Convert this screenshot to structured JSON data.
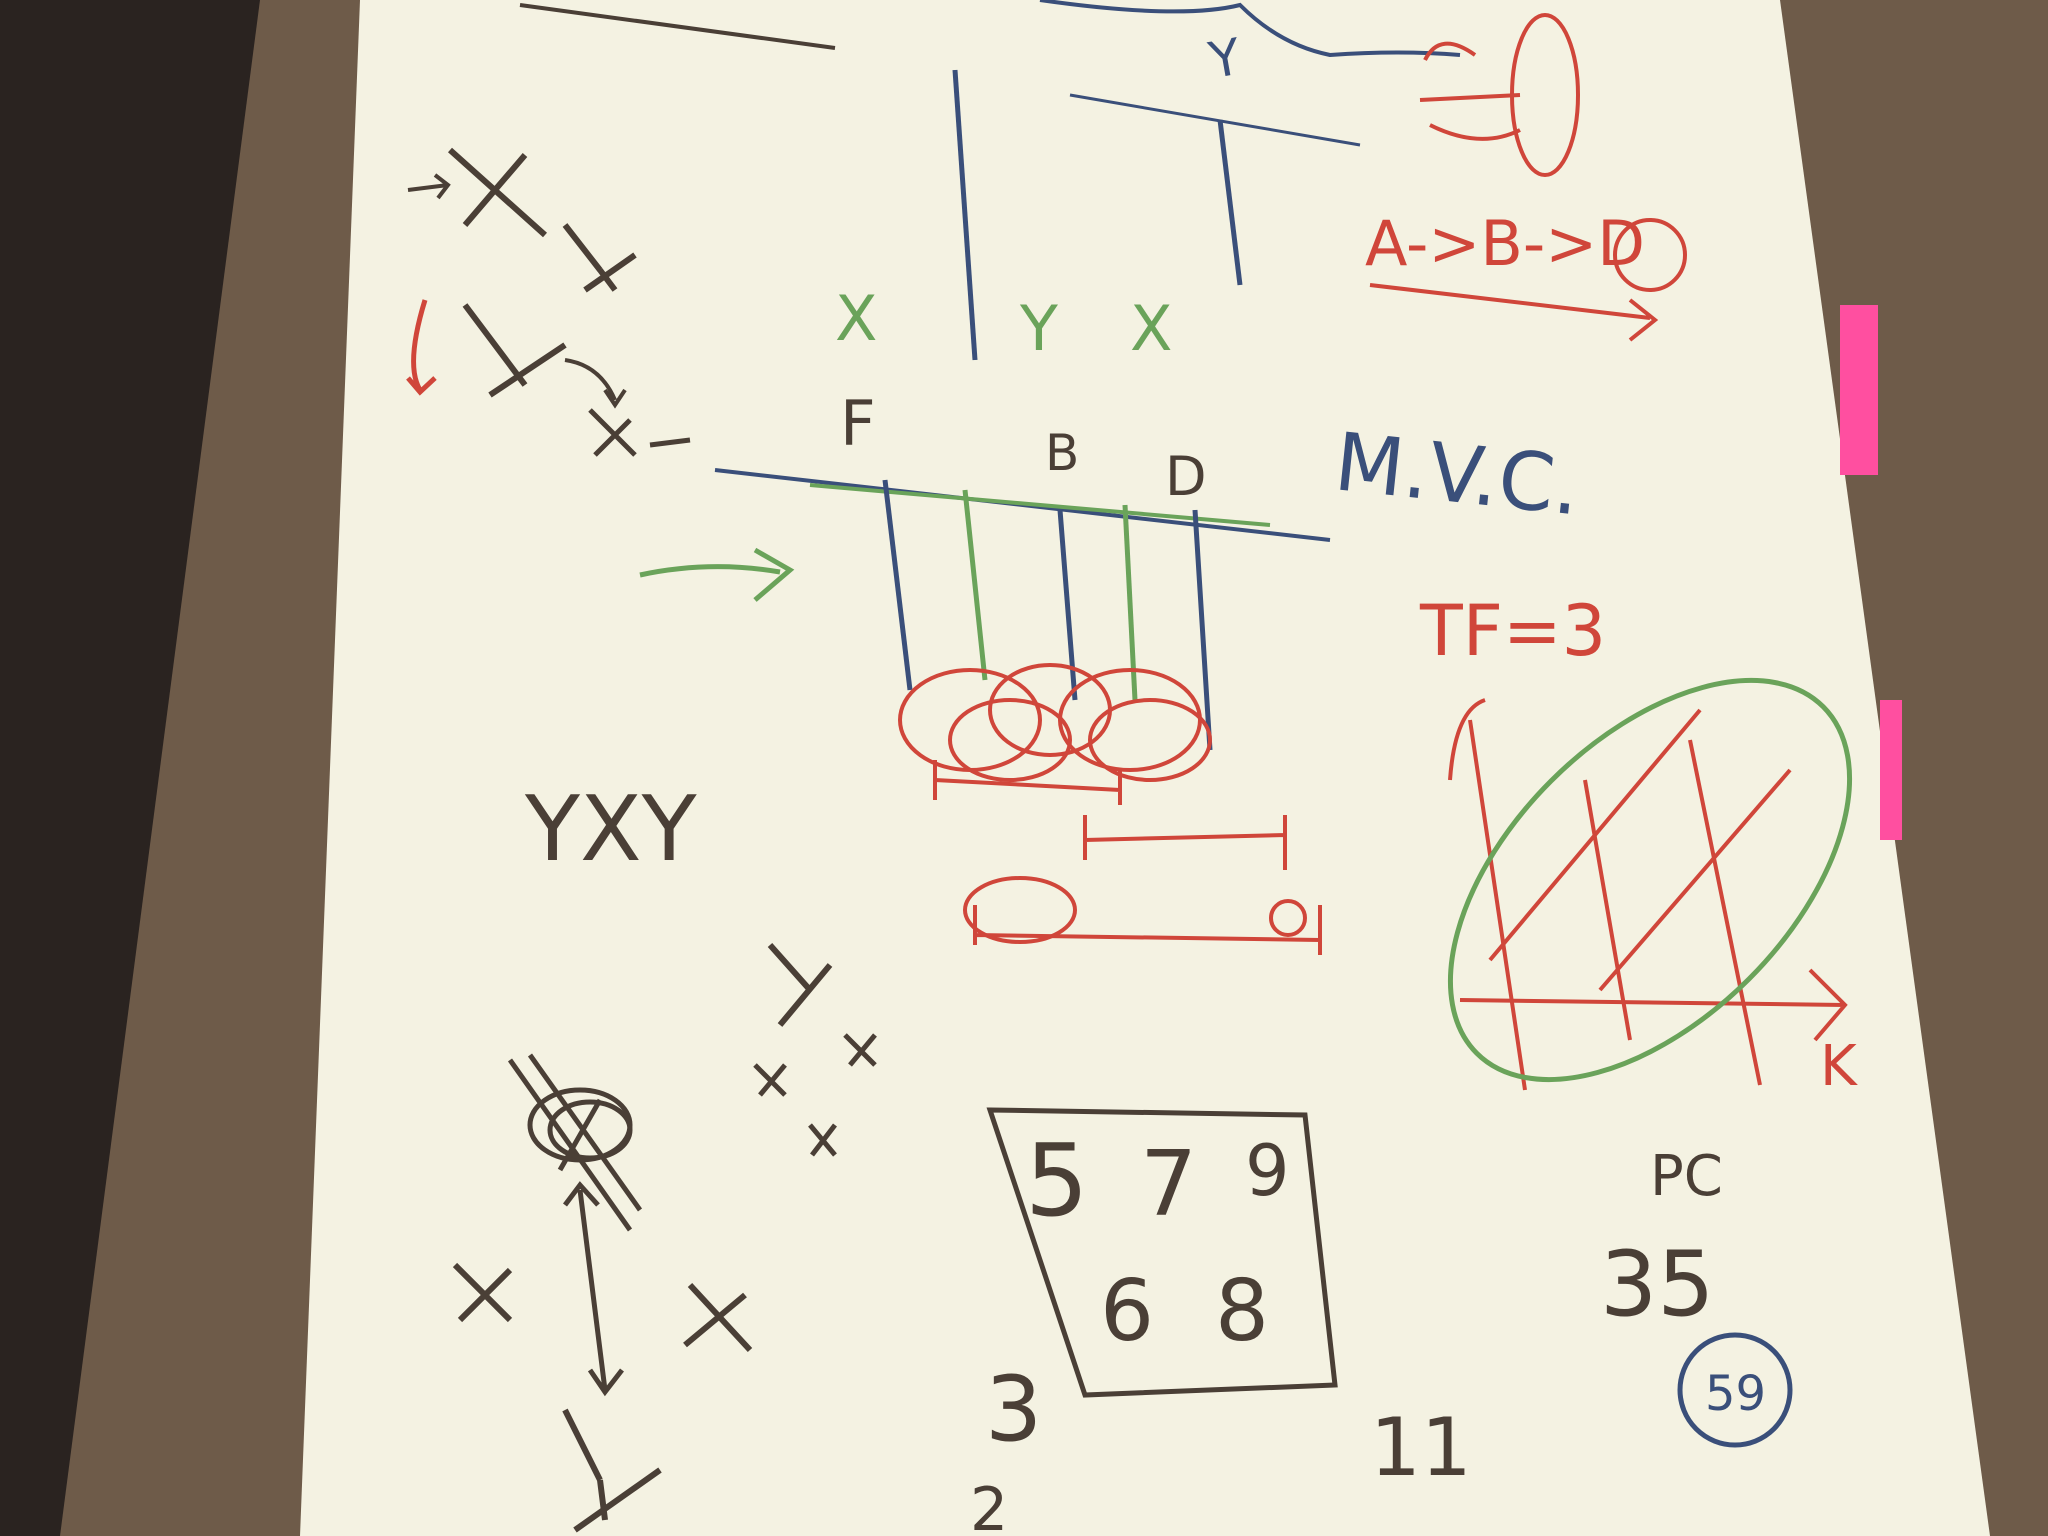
{
  "colors": {
    "carpet": "#2a2320",
    "table": "#6e5b49",
    "paper": "#f4f2e2",
    "sticky_note": "#ff4fa0",
    "ink_dark": "#4a3f36",
    "ink_blue": "#3a4f7a",
    "ink_green": "#6aa35a",
    "ink_red": "#d0463a"
  },
  "scene": {
    "description_labels": {
      "panel_letters": {
        "f": "F",
        "b": "B",
        "d": "D"
      },
      "top_y": "Y",
      "mvc": "M.V.C.",
      "tf_eq": "TF=3",
      "pc": "PC",
      "number_box": [
        "5",
        "7",
        "9",
        "6",
        "8"
      ],
      "three": "3",
      "two": "2",
      "eleven": "11",
      "thirty_five": "35",
      "circled": "59",
      "xyy_row": "YXY",
      "green_labels": [
        "X",
        "Y",
        "X"
      ],
      "red_arrow_chain": "A->B->D"
    }
  }
}
